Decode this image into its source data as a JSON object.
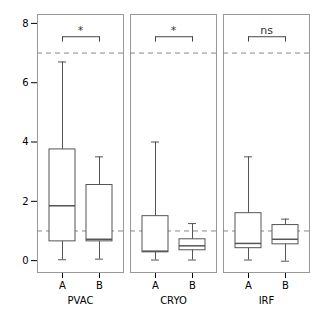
{
  "chart_data": {
    "type": "box",
    "groups": [
      "PVAC",
      "CRYO",
      "IRF"
    ],
    "categories": [
      "A",
      "B"
    ],
    "boxes": [
      {
        "group": "PVAC",
        "category": "A",
        "whislo": 0.03,
        "q1": 0.65,
        "med": 1.85,
        "q3": 3.75,
        "whishi": 6.7
      },
      {
        "group": "PVAC",
        "category": "B",
        "whislo": 0.05,
        "q1": 0.65,
        "med": 0.72,
        "q3": 2.55,
        "whishi": 3.5
      },
      {
        "group": "CRYO",
        "category": "A",
        "whislo": 0.02,
        "q1": 0.28,
        "med": 0.32,
        "q3": 1.5,
        "whishi": 4.0
      },
      {
        "group": "CRYO",
        "category": "B",
        "whislo": 0.02,
        "q1": 0.35,
        "med": 0.5,
        "q3": 0.72,
        "whishi": 1.25
      },
      {
        "group": "IRF",
        "category": "A",
        "whislo": 0.02,
        "q1": 0.42,
        "med": 0.58,
        "q3": 1.6,
        "whishi": 3.5
      },
      {
        "group": "IRF",
        "category": "B",
        "whislo": -0.02,
        "q1": 0.55,
        "med": 0.72,
        "q3": 1.2,
        "whishi": 1.4
      }
    ],
    "color": "#555555",
    "reference_lines": {
      "values": [
        1.0,
        7.0
      ],
      "line_style": "dashed",
      "color": "#888888"
    },
    "annotations": [
      {
        "group": "PVAC",
        "from": "A",
        "to": "B",
        "y": 7.55,
        "label": "*"
      },
      {
        "group": "CRYO",
        "from": "A",
        "to": "B",
        "y": 7.55,
        "label": "*"
      },
      {
        "group": "IRF",
        "from": "A",
        "to": "B",
        "y": 7.55,
        "label": "ns"
      }
    ],
    "ylim": [
      -0.4,
      8.3
    ],
    "yticks": [
      0,
      2,
      4,
      6,
      8
    ]
  }
}
